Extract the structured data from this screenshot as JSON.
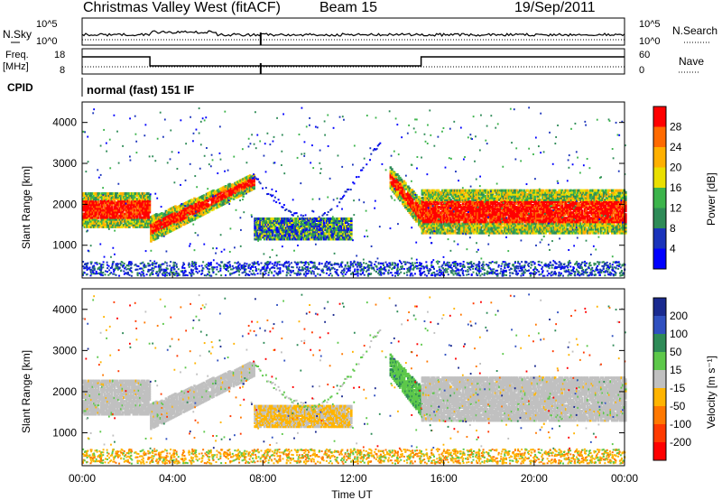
{
  "header": {
    "title": "Christmas Valley West (fitACF)",
    "beam": "Beam 15",
    "date": "19/Sep/2011"
  },
  "chart_data": {
    "type": "heatmap",
    "x_axis": {
      "label": "Time UT",
      "ticks": [
        "00:00",
        "04:00",
        "08:00",
        "12:00",
        "16:00",
        "20:00",
        "00:00"
      ],
      "range_hours": [
        0,
        24
      ]
    },
    "sky_panel": {
      "left_label": "N.Sky",
      "right_label": "N.Search",
      "left_ticks": [
        "10^5",
        "10^0"
      ],
      "right_ticks": [
        "10^5",
        "10^0"
      ]
    },
    "freq_panel": {
      "left_label_1": "Freq.",
      "left_label_2": "[MHz]",
      "right_label": "Nave",
      "left_ticks": [
        "18",
        "8"
      ],
      "right_ticks": [
        "60",
        "0"
      ],
      "step_segments": [
        {
          "start": 0,
          "end": 3,
          "level": "high"
        },
        {
          "start": 3,
          "end": 15,
          "level": "low"
        },
        {
          "start": 15,
          "end": 24,
          "level": "high"
        }
      ]
    },
    "cpid_panel": {
      "label": "CPID",
      "value": "normal (fast) 151 IF"
    },
    "power_panel": {
      "ylabel": "Slant Range [km]",
      "yticks": [
        "4000",
        "3000",
        "2000",
        "1000"
      ],
      "ytick_values": [
        4000,
        3000,
        2000,
        1000
      ],
      "ylim": [
        200,
        4500
      ],
      "colorbar_label": "Power [dB]",
      "colorbar_ticks": [
        "28",
        "24",
        "20",
        "16",
        "12",
        "8",
        "4"
      ],
      "colorbar_colors": [
        "#ff0000",
        "#ff6a00",
        "#ffb000",
        "#eadf00",
        "#3cb44b",
        "#2e8b57",
        "#1a33bb",
        "#0000ff"
      ]
    },
    "velocity_panel": {
      "ylabel": "Slant Range [km]",
      "yticks": [
        "4000",
        "3000",
        "2000",
        "1000"
      ],
      "ytick_values": [
        4000,
        3000,
        2000,
        1000
      ],
      "ylim": [
        200,
        4500
      ],
      "colorbar_label": "Velocity [m s⁻¹]",
      "colorbar_ticks": [
        "200",
        "100",
        "50",
        "15",
        "-15",
        "-50",
        "-100",
        "-200"
      ],
      "colorbar_colors": [
        "#1a2a8f",
        "#3050c0",
        "#2e8b57",
        "#5dc84a",
        "#c0c0c0",
        "#ffb400",
        "#ff7800",
        "#ff3a00",
        "#ff0000"
      ]
    },
    "echo_bands": [
      {
        "t0": 0.0,
        "t1": 3.0,
        "r0": 1450,
        "r1": 2300,
        "power": "high",
        "velocity": "low"
      },
      {
        "t0": 3.0,
        "t1": 7.6,
        "r0": 1100,
        "r1": 2750,
        "power": "high",
        "velocity": "low",
        "slope": "rising"
      },
      {
        "t0": 7.6,
        "t1": 11.9,
        "r0": 1150,
        "r1": 1650,
        "power": "medium",
        "velocity": "negative"
      },
      {
        "t0": 13.6,
        "t1": 15.0,
        "r0": 1400,
        "r1": 2800,
        "power": "high",
        "velocity": "positive",
        "slope": "falling"
      },
      {
        "t0": 15.0,
        "t1": 24.0,
        "r0": 1300,
        "r1": 2350,
        "power": "high",
        "velocity": "low"
      }
    ]
  }
}
